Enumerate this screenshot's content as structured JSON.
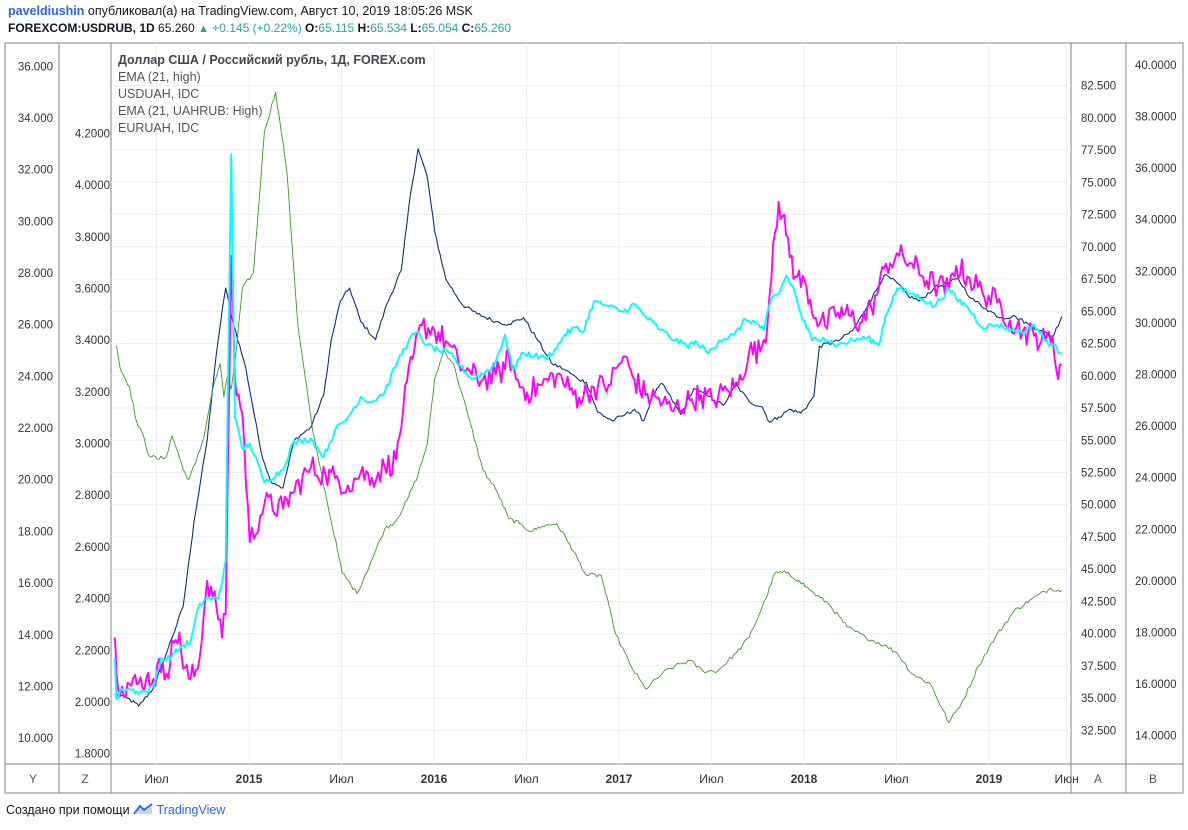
{
  "header": {
    "user": "paveldiushin",
    "published_text": "опубликовал(а) на TradingView.com, Август 10, 2019 18:05:26 MSK",
    "symbol": "FOREXCOM:USDRUB, 1D",
    "last": "65.260",
    "change": "+0.145 (+0.22%)",
    "o_label": "O:",
    "o_value": "65.115",
    "h_label": "H:",
    "h_value": "65.534",
    "l_label": "L:",
    "l_value": "65.054",
    "c_label": "C:",
    "c_value": "65.260"
  },
  "legend": {
    "title": "Доллар США / Российский рубль, 1Д, FOREX.com",
    "items": [
      "EMA (21, high)",
      "USDUAH, IDC",
      "EMA (21, UAHRUB: High)",
      "EURUAH, IDC"
    ]
  },
  "axis_buttons": {
    "y": "Y",
    "z": "Z",
    "a": "A",
    "b": "B"
  },
  "footer": {
    "prefix": "Создано при помощи",
    "brand": "TradingView"
  },
  "colors": {
    "usdrub": "#0d2f7a",
    "usduah": "#ff00ff",
    "uahrub_ema": "#3f9a2a",
    "euruah": "#00ffff",
    "grid": "#eceef2",
    "axis": "#7f838d"
  },
  "chart_data": {
    "type": "line",
    "x_ticks": [
      "Июл",
      "2015",
      "Июл",
      "2016",
      "Июл",
      "2017",
      "Июл",
      "2018",
      "Июл",
      "2019",
      "Июн"
    ],
    "x_ticks_bold": [
      false,
      true,
      false,
      true,
      false,
      true,
      false,
      true,
      false,
      true,
      false
    ],
    "axes": {
      "outer_left": {
        "range": [
          9.0,
          36.9
        ],
        "ticks": [
          "10.000",
          "12.000",
          "14.000",
          "16.000",
          "18.000",
          "20.000",
          "22.000",
          "24.000",
          "26.000",
          "28.000",
          "30.000",
          "32.000",
          "34.000",
          "36.000"
        ]
      },
      "inner_left": {
        "range": [
          1.76,
          4.55
        ],
        "ticks": [
          "1.8000",
          "2.0000",
          "2.2000",
          "2.4000",
          "2.6000",
          "2.8000",
          "3.0000",
          "3.2000",
          "3.4000",
          "3.6000",
          "3.8000",
          "4.0000",
          "4.2000"
        ]
      },
      "inner_right": {
        "range": [
          29.9,
          85.8
        ],
        "ticks": [
          "32.500",
          "35.000",
          "37.500",
          "40.000",
          "42.500",
          "45.000",
          "47.500",
          "50.000",
          "52.500",
          "55.000",
          "57.500",
          "60.000",
          "62.500",
          "65.000",
          "67.500",
          "70.000",
          "72.500",
          "75.000",
          "77.500",
          "80.000",
          "82.500"
        ]
      },
      "outer_right": {
        "range": [
          12.9,
          40.85
        ],
        "ticks": [
          "14.0000",
          "16.0000",
          "18.0000",
          "20.0000",
          "22.0000",
          "24.0000",
          "26.0000",
          "28.0000",
          "30.0000",
          "32.0000",
          "34.0000",
          "36.0000",
          "38.0000",
          "40.0000"
        ]
      }
    },
    "series": [
      {
        "name": "USDRUB",
        "axis": "inner_right",
        "color": "#0d2f7a",
        "width": 1.1,
        "jitter": 0.15,
        "x": [
          2014.49,
          2014.56,
          2014.62,
          2014.7,
          2014.78,
          2014.86,
          2014.92,
          2014.99,
          2015.03,
          2015.07,
          2015.09,
          2015.12,
          2015.2,
          2015.28,
          2015.33,
          2015.4,
          2015.46,
          2015.55,
          2015.62,
          2015.66,
          2015.71,
          2015.76,
          2015.82,
          2015.9,
          2015.96,
          2016.04,
          2016.09,
          2016.13,
          2016.18,
          2016.22,
          2016.28,
          2016.37,
          2016.45,
          2016.55,
          2016.62,
          2016.7,
          2016.78,
          2016.85,
          2016.92,
          2016.99,
          2017.04,
          2017.1,
          2017.18,
          2017.25,
          2017.3,
          2017.35,
          2017.4,
          2017.45,
          2017.55,
          2017.62,
          2017.7,
          2017.78,
          2017.85,
          2017.92,
          2017.99,
          2018.03,
          2018.08,
          2018.14,
          2018.2,
          2018.24,
          2018.27,
          2018.3,
          2018.4,
          2018.48,
          2018.56,
          2018.65,
          2018.72,
          2018.78,
          2018.84,
          2018.92,
          2018.99,
          2019.05,
          2019.12,
          2019.2,
          2019.28,
          2019.36,
          2019.43,
          2019.5,
          2019.56,
          2019.61
        ],
        "y": [
          35.3,
          35.0,
          34.4,
          35.8,
          38.9,
          42.1,
          48.8,
          55.0,
          60.5,
          65.0,
          66.8,
          64.7,
          60.5,
          54.2,
          51.9,
          51.3,
          55.0,
          56.0,
          58.5,
          62.7,
          65.8,
          66.8,
          64.2,
          62.8,
          65.5,
          68.2,
          74.2,
          77.6,
          75.4,
          71.2,
          67.5,
          65.5,
          64.8,
          64.2,
          64.0,
          64.5,
          62.7,
          61.0,
          60.5,
          59.8,
          59.5,
          57.2,
          56.5,
          57.0,
          57.4,
          56.5,
          58.5,
          59.4,
          57.0,
          59.0,
          58.4,
          57.7,
          59.3,
          58.0,
          57.6,
          56.4,
          56.8,
          57.4,
          57.1,
          57.8,
          58.4,
          62.3,
          62.7,
          63.5,
          65.4,
          67.8,
          67.2,
          66.2,
          65.8,
          66.8,
          67.2,
          67.5,
          66.0,
          65.2,
          64.5,
          64.6,
          64.0,
          63.5,
          63.0,
          64.6
        ]
      },
      {
        "name": "UAHRUB EMA",
        "axis": "outer_left",
        "color": "#3f9a2a",
        "width": 0.9,
        "jitter": 0.08,
        "x": [
          2014.5,
          2014.52,
          2014.57,
          2014.61,
          2014.65,
          2014.67,
          2014.72,
          2014.77,
          2014.8,
          2014.83,
          2014.86,
          2014.89,
          2014.93,
          2014.97,
          2015.02,
          2015.06,
          2015.08,
          2015.1,
          2015.12,
          2015.15,
          2015.18,
          2015.24,
          2015.3,
          2015.36,
          2015.42,
          2015.48,
          2015.56,
          2015.64,
          2015.72,
          2015.8,
          2015.88,
          2015.95,
          2016.01,
          2016.07,
          2016.13,
          2016.18,
          2016.22,
          2016.27,
          2016.32,
          2016.4,
          2016.48,
          2016.56,
          2016.62,
          2016.68,
          2016.74,
          2016.8,
          2016.88,
          2016.95,
          2017.04,
          2017.12,
          2017.2,
          2017.28,
          2017.36,
          2017.45,
          2017.52,
          2017.6,
          2017.67,
          2017.75,
          2017.85,
          2017.92,
          2018.01,
          2018.06,
          2018.12,
          2018.19,
          2018.27,
          2018.35,
          2018.45,
          2018.55,
          2018.65,
          2018.72,
          2018.8,
          2018.9,
          2019.0,
          2019.08,
          2019.16,
          2019.25,
          2019.35,
          2019.45,
          2019.55,
          2019.61
        ],
        "y": [
          25.2,
          24.3,
          23.6,
          22.2,
          21.6,
          21.0,
          20.8,
          20.9,
          21.7,
          21.1,
          20.4,
          20.0,
          20.7,
          21.6,
          23.5,
          24.5,
          23.2,
          24.0,
          23.5,
          25.2,
          27.4,
          28.0,
          33.5,
          35.0,
          32.0,
          26.0,
          21.9,
          19.1,
          16.4,
          15.6,
          16.9,
          18.1,
          18.4,
          19.2,
          20.2,
          21.4,
          23.9,
          25.0,
          24.5,
          22.5,
          20.4,
          19.5,
          18.5,
          18.3,
          18.0,
          18.2,
          18.3,
          17.5,
          16.3,
          16.3,
          14.0,
          12.8,
          11.9,
          12.5,
          12.8,
          13.0,
          12.6,
          12.6,
          13.3,
          13.9,
          15.4,
          16.4,
          16.4,
          16.1,
          15.6,
          15.2,
          14.3,
          13.9,
          13.6,
          13.3,
          12.5,
          12.1,
          10.6,
          11.5,
          12.8,
          13.9,
          14.9,
          15.4,
          15.8,
          15.7
        ]
      },
      {
        "name": "USDUAH",
        "axis": "outer_right",
        "color": "#ff00ff",
        "width": 1.9,
        "jitter": 0.5,
        "x": [
          2014.49,
          2014.5,
          2014.53,
          2014.57,
          2014.61,
          2014.66,
          2014.7,
          2014.75,
          2014.77,
          2014.81,
          2014.84,
          2014.86,
          2014.9,
          2014.94,
          2014.99,
          2015.02,
          2015.04,
          2015.06,
          2015.07,
          2015.09,
          2015.1,
          2015.12,
          2015.14,
          2015.18,
          2015.22,
          2015.3,
          2015.4,
          2015.45,
          2015.55,
          2015.63,
          2015.68,
          2015.75,
          2015.82,
          2015.88,
          2015.95,
          2016.01,
          2016.05,
          2016.1,
          2016.15,
          2016.22,
          2016.28,
          2016.35,
          2016.42,
          2016.48,
          2016.55,
          2016.6,
          2016.62,
          2016.66,
          2016.72,
          2016.8,
          2016.88,
          2016.95,
          2017.0,
          2017.08,
          2017.16,
          2017.24,
          2017.3,
          2017.36,
          2017.42,
          2017.5,
          2017.6,
          2017.66,
          2017.72,
          2017.8,
          2017.86,
          2017.92,
          2017.98,
          2018.02,
          2018.05,
          2018.08,
          2018.12,
          2018.17,
          2018.23,
          2018.28,
          2018.33,
          2018.4,
          2018.46,
          2018.52,
          2018.58,
          2018.62,
          2018.66,
          2018.73,
          2018.8,
          2018.86,
          2018.92,
          2019.0,
          2019.04,
          2019.1,
          2019.18,
          2019.26,
          2019.33,
          2019.4,
          2019.46,
          2019.52,
          2019.56,
          2019.58,
          2019.61
        ],
        "y": [
          17.8,
          16.4,
          15.9,
          16.0,
          16.0,
          16.2,
          16.2,
          16.8,
          16.4,
          17.6,
          18.0,
          16.6,
          16.2,
          16.6,
          20.0,
          19.4,
          19.0,
          18.5,
          17.8,
          18.7,
          23.5,
          32.6,
          27.8,
          26.5,
          21.5,
          23.0,
          22.8,
          23.4,
          24.4,
          24.1,
          24.0,
          23.7,
          24.2,
          24.0,
          24.4,
          24.7,
          26.7,
          28.6,
          29.9,
          29.7,
          29.3,
          28.4,
          28.0,
          27.8,
          28.0,
          28.2,
          28.8,
          27.8,
          27.3,
          27.6,
          28.0,
          27.4,
          27.1,
          27.5,
          27.6,
          28.7,
          27.8,
          27.2,
          27.1,
          26.6,
          27.0,
          27.2,
          27.0,
          27.4,
          27.6,
          28.9,
          28.9,
          30.0,
          33.1,
          34.7,
          33.4,
          31.8,
          31.4,
          30.2,
          29.9,
          30.4,
          30.3,
          30.0,
          30.6,
          31.3,
          32.3,
          32.6,
          32.3,
          31.8,
          31.5,
          31.3,
          32.2,
          31.8,
          31.2,
          30.8,
          30.1,
          29.7,
          29.5,
          29.3,
          29.5,
          28.2,
          28.4
        ]
      },
      {
        "name": "EURUAH",
        "axis": "inner_left",
        "color": "#00ffff",
        "width": 1.9,
        "jitter": 0.012,
        "x": [
          2014.49,
          2014.5,
          2014.53,
          2014.57,
          2014.61,
          2014.66,
          2014.7,
          2014.74,
          2014.76,
          2014.8,
          2014.86,
          2014.9,
          2014.94,
          2014.98,
          2015.02,
          2015.05,
          2015.07,
          2015.09,
          2015.1,
          2015.12,
          2015.14,
          2015.18,
          2015.22,
          2015.3,
          2015.4,
          2015.45,
          2015.55,
          2015.62,
          2015.68,
          2015.75,
          2015.82,
          2015.88,
          2015.95,
          2016.02,
          2016.08,
          2016.12,
          2016.18,
          2016.24,
          2016.3,
          2016.36,
          2016.42,
          2016.48,
          2016.54,
          2016.6,
          2016.64,
          2016.7,
          2016.76,
          2016.82,
          2016.88,
          2016.92,
          2016.98,
          2017.02,
          2017.08,
          2017.16,
          2017.24,
          2017.3,
          2017.36,
          2017.44,
          2017.52,
          2017.58,
          2017.64,
          2017.7,
          2017.76,
          2017.84,
          2017.9,
          2017.95,
          2018.0,
          2018.04,
          2018.08,
          2018.12,
          2018.16,
          2018.2,
          2018.26,
          2018.32,
          2018.4,
          2018.48,
          2018.56,
          2018.62,
          2018.66,
          2018.72,
          2018.8,
          2018.86,
          2018.92,
          2019.0,
          2019.04,
          2019.1,
          2019.18,
          2019.26,
          2019.34,
          2019.4,
          2019.46,
          2019.52,
          2019.56,
          2019.61
        ],
        "y": [
          2.17,
          2.01,
          2.05,
          2.05,
          2.04,
          2.04,
          2.06,
          2.17,
          2.16,
          2.18,
          2.22,
          2.23,
          2.36,
          2.4,
          2.4,
          2.4,
          2.46,
          2.55,
          3.12,
          4.12,
          3.1,
          2.98,
          3.0,
          2.85,
          2.9,
          3.0,
          3.02,
          2.95,
          3.05,
          3.1,
          3.18,
          3.16,
          3.2,
          3.32,
          3.4,
          3.43,
          3.38,
          3.36,
          3.35,
          3.3,
          3.25,
          3.27,
          3.3,
          3.42,
          3.29,
          3.35,
          3.34,
          3.33,
          3.37,
          3.42,
          3.45,
          3.43,
          3.55,
          3.53,
          3.51,
          3.54,
          3.49,
          3.44,
          3.4,
          3.38,
          3.39,
          3.35,
          3.4,
          3.42,
          3.48,
          3.47,
          3.44,
          3.56,
          3.58,
          3.65,
          3.6,
          3.5,
          3.4,
          3.41,
          3.38,
          3.4,
          3.41,
          3.38,
          3.5,
          3.6,
          3.58,
          3.56,
          3.53,
          3.6,
          3.56,
          3.53,
          3.45,
          3.46,
          3.44,
          3.43,
          3.46,
          3.4,
          3.38,
          3.35
        ]
      }
    ]
  }
}
